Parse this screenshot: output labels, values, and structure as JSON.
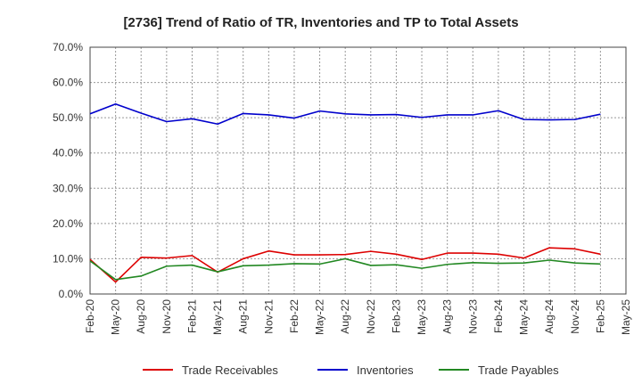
{
  "chart_data": {
    "type": "line",
    "title": "[2736]  Trend of Ratio of TR, Inventories and TP to Total Assets",
    "xlabel": "",
    "ylabel": "",
    "ylim": [
      0,
      70
    ],
    "y_ticks": [
      0,
      10,
      20,
      30,
      40,
      50,
      60,
      70
    ],
    "y_tick_labels": [
      "0.0%",
      "10.0%",
      "20.0%",
      "30.0%",
      "40.0%",
      "50.0%",
      "60.0%",
      "70.0%"
    ],
    "x_tick_labels": [
      "Feb-20",
      "May-20",
      "Aug-20",
      "Nov-20",
      "Feb-21",
      "May-21",
      "Aug-21",
      "Nov-21",
      "Feb-22",
      "May-22",
      "Aug-22",
      "Nov-22",
      "Feb-23",
      "May-23",
      "Aug-23",
      "Nov-23",
      "Feb-24",
      "May-24",
      "Aug-24",
      "Nov-24",
      "Feb-25",
      "May-25"
    ],
    "x": [
      "Feb-20",
      "May-20",
      "Aug-20",
      "Nov-20",
      "Feb-21",
      "May-21",
      "Aug-21",
      "Nov-21",
      "Feb-22",
      "May-22",
      "Aug-22",
      "Nov-22",
      "Feb-23",
      "May-23",
      "Aug-23",
      "Nov-23",
      "Feb-24",
      "May-24",
      "Aug-24",
      "Nov-24",
      "Feb-25"
    ],
    "grid": true,
    "legend_position": "bottom",
    "series": [
      {
        "name": "Trade Receivables",
        "color": "#dd0000",
        "values": [
          9.8,
          3.4,
          10.4,
          10.2,
          10.9,
          6.2,
          10.0,
          12.2,
          11.1,
          11.1,
          11.2,
          12.1,
          11.3,
          9.8,
          11.6,
          11.6,
          11.3,
          10.2,
          13.1,
          12.8,
          11.3
        ]
      },
      {
        "name": "Inventories",
        "color": "#0000cc",
        "values": [
          51.1,
          53.9,
          51.3,
          48.9,
          49.7,
          48.2,
          51.2,
          50.8,
          49.9,
          51.9,
          51.1,
          50.8,
          50.9,
          50.1,
          50.8,
          50.8,
          52.0,
          49.5,
          49.4,
          49.5,
          51.0
        ]
      },
      {
        "name": "Trade Payables",
        "color": "#228822",
        "values": [
          9.4,
          4.1,
          5.1,
          7.9,
          8.2,
          6.3,
          8.0,
          8.2,
          8.6,
          8.5,
          10.0,
          8.1,
          8.3,
          7.3,
          8.4,
          8.9,
          8.7,
          8.8,
          9.6,
          8.8,
          8.5
        ]
      }
    ]
  }
}
